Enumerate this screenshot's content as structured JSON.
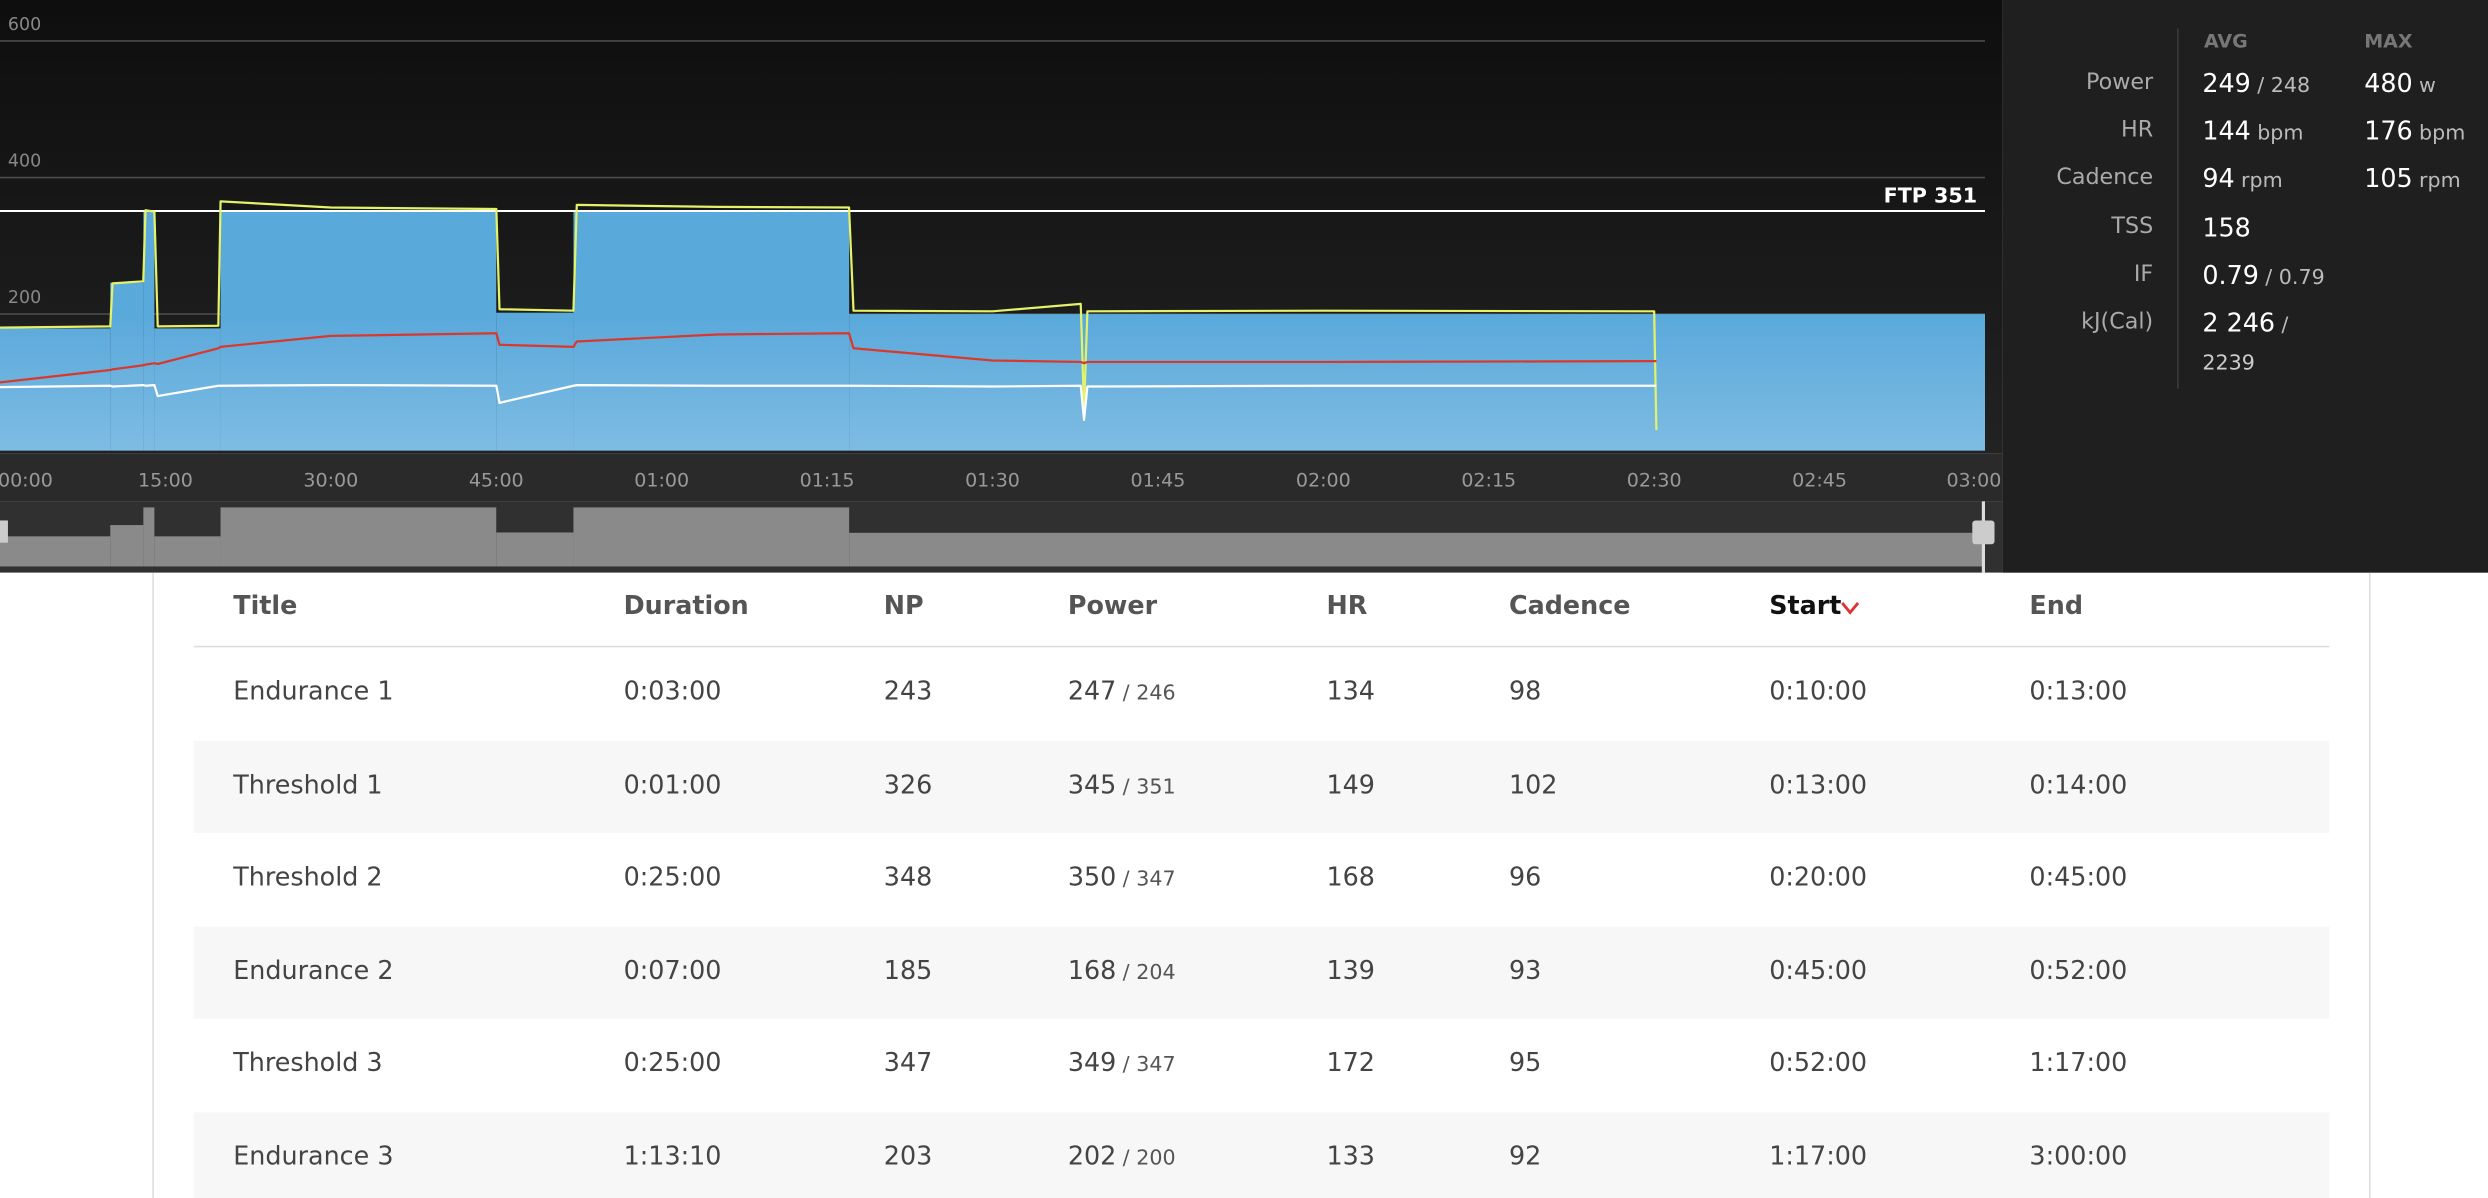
{
  "chart_data": {
    "type": "line",
    "xlim": [
      0,
      180
    ],
    "xticks": [
      {
        "value": 0,
        "label": "00:00"
      },
      {
        "value": 15,
        "label": "15:00"
      },
      {
        "value": 30,
        "label": "30:00"
      },
      {
        "value": 45,
        "label": "45:00"
      },
      {
        "value": 60,
        "label": "01:00"
      },
      {
        "value": 75,
        "label": "01:15"
      },
      {
        "value": 90,
        "label": "01:30"
      },
      {
        "value": 105,
        "label": "01:45"
      },
      {
        "value": 120,
        "label": "02:00"
      },
      {
        "value": 135,
        "label": "02:15"
      },
      {
        "value": 150,
        "label": "02:30"
      },
      {
        "value": 165,
        "label": "02:45"
      },
      {
        "value": 180,
        "label": "03:00"
      }
    ],
    "ylim": [
      0,
      660
    ],
    "yticks": [
      200,
      400,
      600
    ],
    "grid": true,
    "reference_line": {
      "value": 351,
      "label": "FTP 351",
      "color": "#ffffff"
    },
    "target": {
      "color": "#5aa9db",
      "overview_color": "#8a8a8a",
      "bins": [
        0,
        10,
        13,
        14,
        20,
        45,
        52,
        77,
        180
      ],
      "values": [
        179,
        246,
        351,
        179,
        351,
        202,
        351,
        200
      ]
    },
    "x": [
      0,
      10,
      10.2,
      13,
      13.2,
      14,
      14.3,
      19.8,
      20,
      30,
      45,
      45.3,
      52,
      52.3,
      65,
      77,
      77.4,
      90,
      98,
      98.3,
      98.6,
      120,
      150,
      150.2
    ],
    "series": [
      {
        "color": "#e4f26a",
        "values": [
          180,
          182,
          245,
          248,
          352,
          350,
          182,
          183,
          365,
          356,
          354,
          207,
          205,
          360,
          357,
          356,
          205,
          204,
          215,
          60,
          204,
          205,
          204,
          30
        ]
      },
      {
        "color": "#d9382c",
        "values": [
          100,
          118,
          119,
          125,
          126,
          128,
          127,
          150,
          152,
          168,
          172,
          155,
          152,
          160,
          170,
          172,
          150,
          132,
          130,
          128,
          130,
          130,
          131,
          131
        ]
      },
      {
        "color": "#ffffff",
        "values": [
          93,
          95,
          94,
          96,
          95,
          96,
          80,
          95,
          95,
          96,
          95,
          70,
          95,
          96,
          95,
          95,
          95,
          94,
          95,
          45,
          94,
          95,
          95,
          95
        ]
      }
    ]
  },
  "stats": {
    "headers": [
      "AVG",
      "MAX"
    ],
    "rows": [
      {
        "label": "Power",
        "avg": [
          "249",
          "/ 248"
        ],
        "max": [
          "480",
          "w"
        ]
      },
      {
        "label": "HR",
        "avg": [
          "144",
          "bpm"
        ],
        "max": [
          "176",
          "bpm"
        ]
      },
      {
        "label": "Cadence",
        "avg": [
          "94",
          "rpm"
        ],
        "max": [
          "105",
          "rpm"
        ]
      },
      {
        "label": "TSS",
        "avg": [
          "158"
        ]
      },
      {
        "label": "IF",
        "avg": [
          "0.79",
          "/ 0.79"
        ]
      },
      {
        "label": "kJ(Cal)",
        "avg": [
          "2 246",
          "/",
          "2239"
        ]
      }
    ]
  },
  "table": {
    "columns": [
      "Title",
      "Duration",
      "NP",
      "Power",
      "HR",
      "Cadence",
      "Start",
      "End"
    ],
    "sort_column": 6,
    "rows": [
      [
        "Endurance 1",
        "0:03:00",
        "243",
        [
          "247",
          "/ 246"
        ],
        "134",
        "98",
        "0:10:00",
        "0:13:00"
      ],
      [
        "Threshold 1",
        "0:01:00",
        "326",
        [
          "345",
          "/ 351"
        ],
        "149",
        "102",
        "0:13:00",
        "0:14:00"
      ],
      [
        "Threshold 2",
        "0:25:00",
        "348",
        [
          "350",
          "/ 347"
        ],
        "168",
        "96",
        "0:20:00",
        "0:45:00"
      ],
      [
        "Endurance 2",
        "0:07:00",
        "185",
        [
          "168",
          "/ 204"
        ],
        "139",
        "93",
        "0:45:00",
        "0:52:00"
      ],
      [
        "Threshold 3",
        "0:25:00",
        "347",
        [
          "349",
          "/ 347"
        ],
        "172",
        "95",
        "0:52:00",
        "1:17:00"
      ],
      [
        "Endurance 3",
        "1:13:10",
        "203",
        [
          "202",
          "/ 200"
        ],
        "133",
        "92",
        "1:17:00",
        "3:00:00"
      ]
    ]
  }
}
